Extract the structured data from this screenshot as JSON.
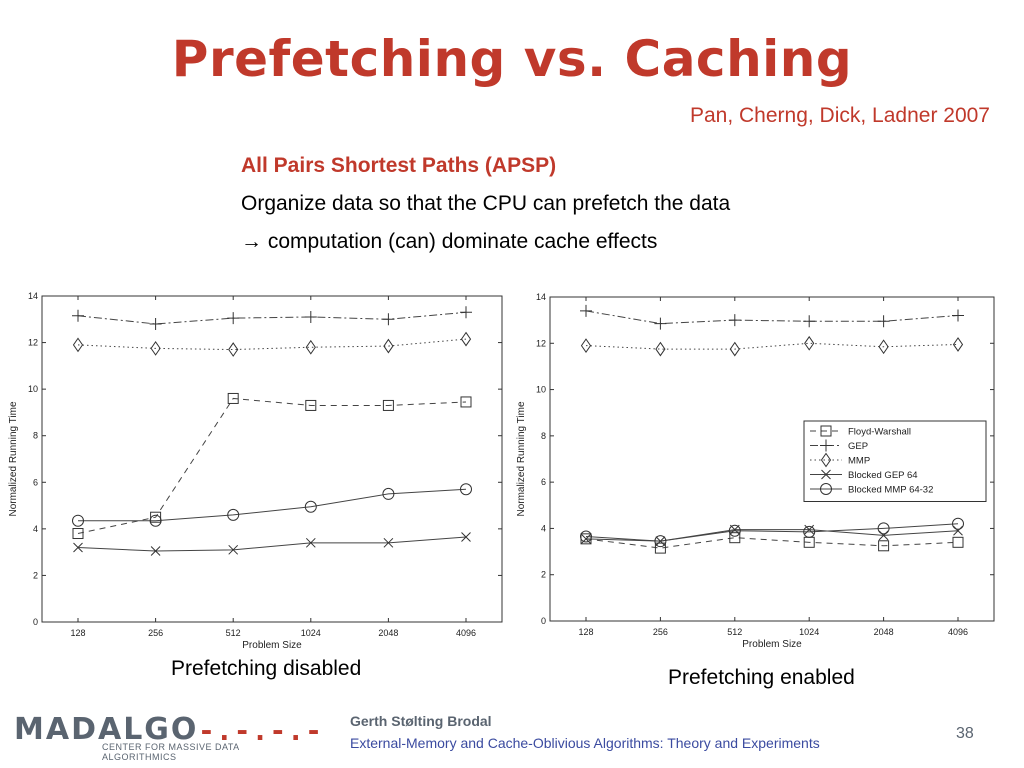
{
  "slide": {
    "title": "Prefetching vs. Caching",
    "authors": "Pan, Cherng, Dick, Ladner 2007",
    "heading": "All Pairs Shortest Paths (APSP)",
    "line1": "Organize data so that the CPU can prefetch the data",
    "line2": "→ computation (can) dominate cache effects",
    "caption_left": "Prefetching disabled",
    "caption_right": "Prefetching enabled"
  },
  "footer": {
    "logo_text": "MADALGO",
    "logo_dashes": "-.-.-.-",
    "logo_subtitle": "CENTER FOR MASSIVE DATA ALGORITHMICS",
    "author": "Gerth Stølting Brodal",
    "course": "External-Memory and Cache-Oblivious Algorithms: Theory and Experiments",
    "page": "38"
  },
  "chart_data": [
    {
      "type": "line",
      "xlabel": "Problem Size",
      "ylabel": "Normalized Running Time",
      "categories": [
        "128",
        "256",
        "512",
        "1024",
        "2048",
        "4096"
      ],
      "ylim": [
        0,
        14
      ],
      "yticks": [
        0,
        2,
        4,
        6,
        8,
        10,
        12,
        14
      ],
      "grid": false,
      "legend": false,
      "series": [
        {
          "name": "Floyd-Warshall",
          "marker": "square",
          "dash": "6,5",
          "values": [
            3.8,
            4.5,
            9.6,
            9.3,
            9.3,
            9.45
          ]
        },
        {
          "name": "GEP",
          "marker": "plus",
          "dash": "8,3,2,3",
          "values": [
            13.15,
            12.8,
            13.05,
            13.1,
            13.0,
            13.3
          ]
        },
        {
          "name": "MMP",
          "marker": "diamond",
          "dash": "1.5,3",
          "values": [
            11.9,
            11.75,
            11.7,
            11.8,
            11.85,
            12.15
          ]
        },
        {
          "name": "Blocked GEP 64",
          "marker": "x",
          "dash": "",
          "values": [
            3.2,
            3.05,
            3.1,
            3.4,
            3.4,
            3.65
          ]
        },
        {
          "name": "Blocked MMP 64-32",
          "marker": "circle",
          "dash": "",
          "values": [
            4.35,
            4.35,
            4.6,
            4.95,
            5.5,
            5.7
          ]
        }
      ]
    },
    {
      "type": "line",
      "xlabel": "Problem Size",
      "ylabel": "Normalized Running Time",
      "categories": [
        "128",
        "256",
        "512",
        "1024",
        "2048",
        "4096"
      ],
      "ylim": [
        0,
        14
      ],
      "yticks": [
        0,
        2,
        4,
        6,
        8,
        10,
        12,
        14
      ],
      "grid": false,
      "legend": "right-middle",
      "series": [
        {
          "name": "Floyd-Warshall",
          "marker": "square",
          "dash": "6,5",
          "values": [
            3.55,
            3.15,
            3.6,
            3.4,
            3.25,
            3.4
          ]
        },
        {
          "name": "GEP",
          "marker": "plus",
          "dash": "8,3,2,3",
          "values": [
            13.4,
            12.85,
            13.0,
            12.95,
            12.95,
            13.2
          ]
        },
        {
          "name": "MMP",
          "marker": "diamond",
          "dash": "1.5,3",
          "values": [
            11.9,
            11.75,
            11.75,
            12.0,
            11.85,
            11.95
          ]
        },
        {
          "name": "Blocked GEP 64",
          "marker": "x",
          "dash": "",
          "values": [
            3.55,
            3.45,
            3.95,
            3.95,
            3.7,
            3.9
          ]
        },
        {
          "name": "Blocked MMP 64-32",
          "marker": "circle",
          "dash": "",
          "values": [
            3.65,
            3.45,
            3.9,
            3.85,
            4.0,
            4.2
          ]
        }
      ]
    }
  ]
}
